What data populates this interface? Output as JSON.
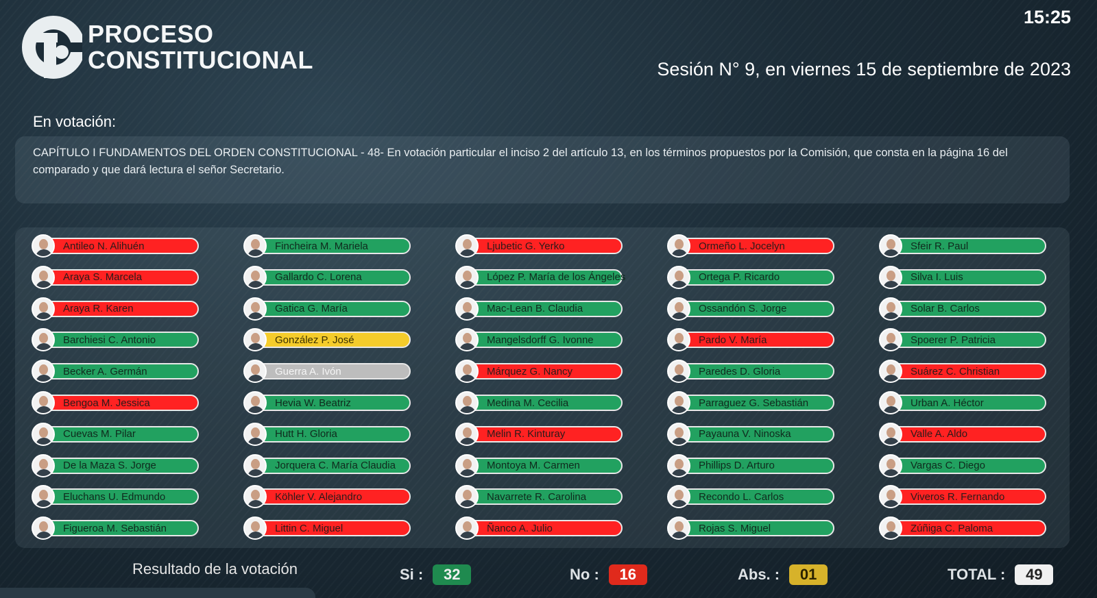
{
  "header": {
    "logo_line1": "PROCESO",
    "logo_line2": "CONSTITUCIONAL",
    "clock": "15:25",
    "session": "Sesión N° 9, en viernes 15 de septiembre de 2023"
  },
  "voting": {
    "label": "En votación:",
    "motion": "CAPÍTULO I FUNDAMENTOS DEL ORDEN CONSTITUCIONAL - 48- En votación particular el inciso 2 del artículo 13, en los términos propuestos por la Comisión, que consta en la página 16 del comparado y que dará lectura el señor Secretario."
  },
  "colors": {
    "si": "#22a160",
    "no": "#ff2222",
    "abs": "#f5cc2b",
    "absent": "#bdbdbd"
  },
  "members": [
    {
      "name": "Antileo N. Alihuén",
      "vote": "no"
    },
    {
      "name": "Araya S. Marcela",
      "vote": "no"
    },
    {
      "name": "Araya R. Karen",
      "vote": "no"
    },
    {
      "name": "Barchiesi C. Antonio",
      "vote": "si"
    },
    {
      "name": "Becker A. Germán",
      "vote": "si"
    },
    {
      "name": "Bengoa M. Jessica",
      "vote": "no"
    },
    {
      "name": "Cuevas M. Pilar",
      "vote": "si"
    },
    {
      "name": "De la Maza S. Jorge",
      "vote": "si"
    },
    {
      "name": "Eluchans U. Edmundo",
      "vote": "si"
    },
    {
      "name": "Figueroa M. Sebastián",
      "vote": "si"
    },
    {
      "name": "Fincheira M. Mariela",
      "vote": "si"
    },
    {
      "name": "Gallardo C. Lorena",
      "vote": "si"
    },
    {
      "name": "Gatica G. María",
      "vote": "si"
    },
    {
      "name": "González P. José",
      "vote": "abs"
    },
    {
      "name": "Guerra A. Ivón",
      "vote": "absent"
    },
    {
      "name": "Hevia W. Beatriz",
      "vote": "si"
    },
    {
      "name": "Hutt H. Gloria",
      "vote": "si"
    },
    {
      "name": "Jorquera C. María Claudia",
      "vote": "si"
    },
    {
      "name": "Köhler V. Alejandro",
      "vote": "no"
    },
    {
      "name": "Littin C. Miguel",
      "vote": "no"
    },
    {
      "name": "Ljubetic G. Yerko",
      "vote": "no"
    },
    {
      "name": "López P. María de los Ángeles",
      "vote": "si"
    },
    {
      "name": "Mac-Lean B. Claudia",
      "vote": "si"
    },
    {
      "name": "Mangelsdorff G. Ivonne",
      "vote": "si"
    },
    {
      "name": "Márquez G. Nancy",
      "vote": "no"
    },
    {
      "name": "Medina M. Cecilia",
      "vote": "si"
    },
    {
      "name": "Melin R. Kinturay",
      "vote": "no"
    },
    {
      "name": "Montoya M. Carmen",
      "vote": "si"
    },
    {
      "name": "Navarrete R. Carolina",
      "vote": "si"
    },
    {
      "name": "Ñanco A. Julio",
      "vote": "no"
    },
    {
      "name": "Ormeño L. Jocelyn",
      "vote": "no"
    },
    {
      "name": "Ortega P. Ricardo",
      "vote": "si"
    },
    {
      "name": "Ossandón S. Jorge",
      "vote": "si"
    },
    {
      "name": "Pardo V. María",
      "vote": "no"
    },
    {
      "name": "Paredes D. Gloria",
      "vote": "si"
    },
    {
      "name": "Parraguez G. Sebastián",
      "vote": "si"
    },
    {
      "name": "Payauna V. Ninoska",
      "vote": "si"
    },
    {
      "name": "Phillips D. Arturo",
      "vote": "si"
    },
    {
      "name": "Recondo L. Carlos",
      "vote": "si"
    },
    {
      "name": "Rojas S. Miguel",
      "vote": "si"
    },
    {
      "name": "Sfeir R. Paul",
      "vote": "si"
    },
    {
      "name": "Silva I. Luis",
      "vote": "si"
    },
    {
      "name": "Solar B. Carlos",
      "vote": "si"
    },
    {
      "name": "Spoerer P. Patricia",
      "vote": "si"
    },
    {
      "name": "Suárez C. Christian",
      "vote": "no"
    },
    {
      "name": "Urban A. Héctor",
      "vote": "si"
    },
    {
      "name": "Valle A. Aldo",
      "vote": "no"
    },
    {
      "name": "Vargas C. Diego",
      "vote": "si"
    },
    {
      "name": "Viveros R. Fernando",
      "vote": "no"
    },
    {
      "name": "Zúñiga C. Paloma",
      "vote": "no"
    }
  ],
  "result": {
    "label": "Resultado de la votación",
    "si_label": "Si :",
    "si_value": "32",
    "no_label": "No :",
    "no_value": "16",
    "abs_label": "Abs. :",
    "abs_value": "01",
    "total_label": "TOTAL :",
    "total_value": "49"
  }
}
